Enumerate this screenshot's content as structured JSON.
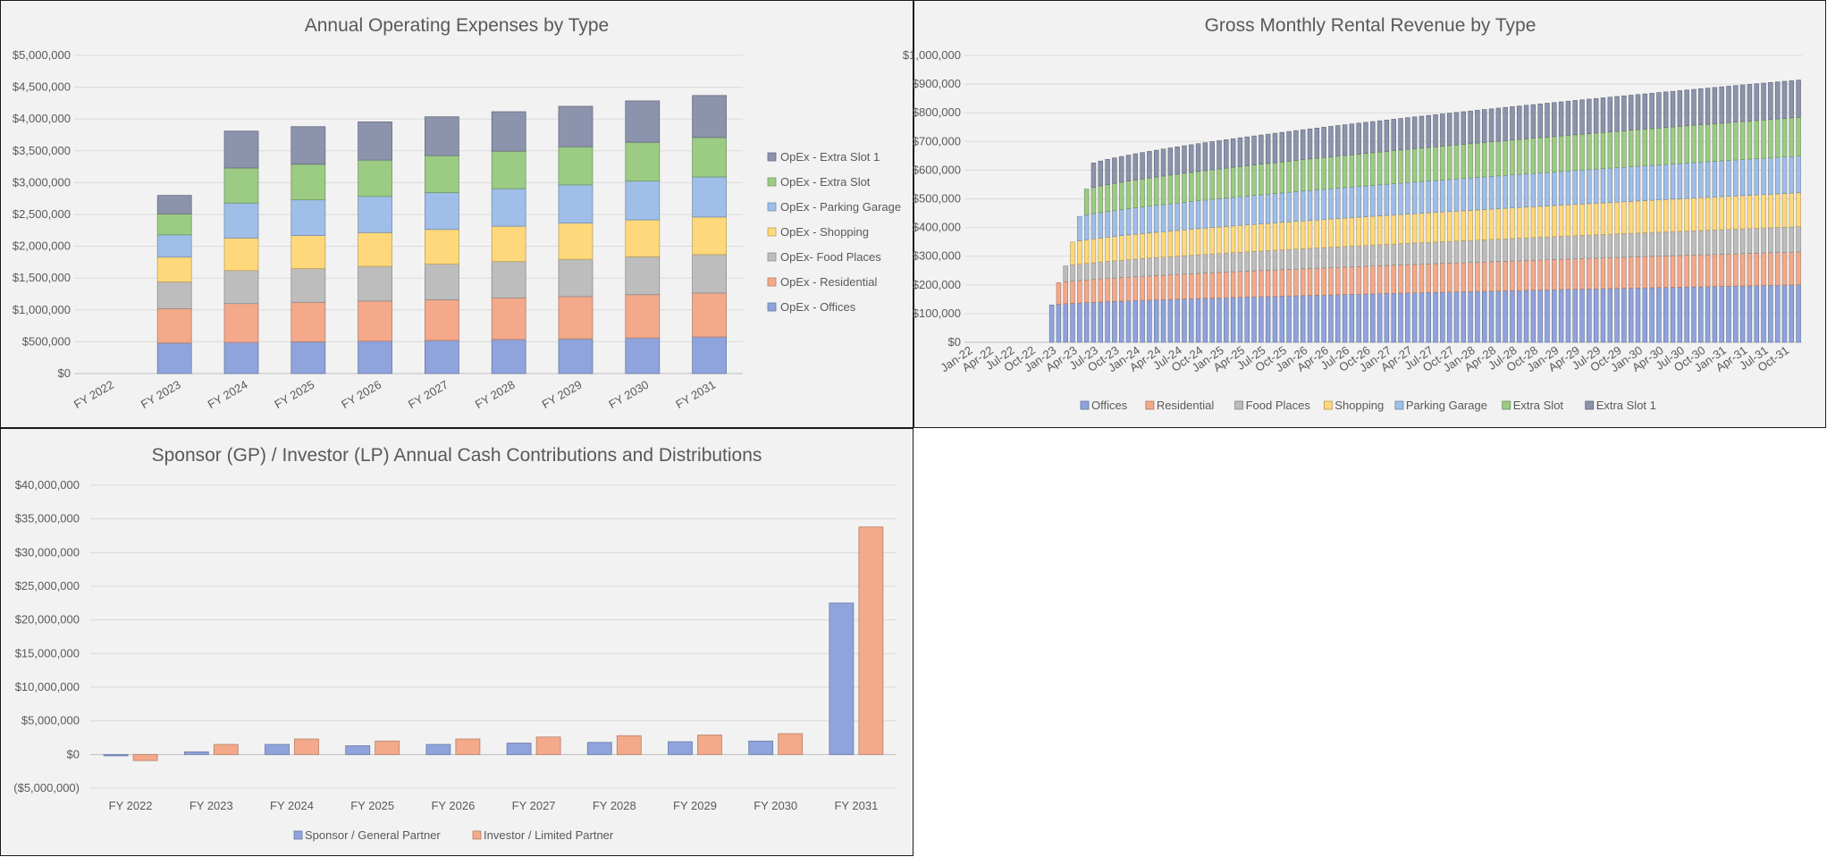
{
  "chart_data": [
    {
      "id": "opex",
      "type": "bar",
      "stacked": true,
      "title": "Annual Operating Expenses by Type",
      "categories": [
        "FY 2022",
        "FY 2023",
        "FY 2024",
        "FY 2025",
        "FY 2026",
        "FY 2027",
        "FY 2028",
        "FY 2029",
        "FY 2030",
        "FY 2031"
      ],
      "ylim": [
        0,
        5000000
      ],
      "yticks": [
        0,
        500000,
        1000000,
        1500000,
        2000000,
        2500000,
        3000000,
        3500000,
        4000000,
        4500000,
        5000000
      ],
      "ytick_labels": [
        "$0",
        "$500,000",
        "$1,000,000",
        "$1,500,000",
        "$2,000,000",
        "$2,500,000",
        "$3,000,000",
        "$3,500,000",
        "$4,000,000",
        "$4,500,000",
        "$5,000,000"
      ],
      "grid": true,
      "legend_position": "right",
      "series": [
        {
          "name": "OpEx - Offices",
          "color": "#8fa3dc",
          "values": [
            0,
            480000,
            490000,
            500000,
            510000,
            520000,
            535000,
            545000,
            560000,
            575000
          ]
        },
        {
          "name": "OpEx - Residential",
          "color": "#f3a98a",
          "values": [
            0,
            540000,
            610000,
            620000,
            630000,
            640000,
            655000,
            665000,
            680000,
            690000
          ]
        },
        {
          "name": "OpEx- Food Places",
          "color": "#bdbdbd",
          "values": [
            0,
            420000,
            520000,
            530000,
            545000,
            560000,
            570000,
            585000,
            595000,
            605000
          ]
        },
        {
          "name": "OpEx - Shopping",
          "color": "#fed87a",
          "values": [
            0,
            390000,
            510000,
            520000,
            530000,
            545000,
            555000,
            570000,
            580000,
            590000
          ]
        },
        {
          "name": "OpEx - Parking Garage",
          "color": "#9fbee8",
          "values": [
            0,
            350000,
            550000,
            560000,
            570000,
            580000,
            590000,
            600000,
            610000,
            630000
          ]
        },
        {
          "name": "OpEx - Extra Slot",
          "color": "#9ccb84",
          "values": [
            0,
            330000,
            550000,
            560000,
            570000,
            580000,
            590000,
            600000,
            610000,
            620000
          ]
        },
        {
          "name": "OpEx - Extra Slot 1",
          "color": "#8c93ad",
          "values": [
            0,
            290000,
            580000,
            590000,
            600000,
            610000,
            620000,
            635000,
            650000,
            660000
          ]
        }
      ]
    },
    {
      "id": "revenue",
      "type": "bar",
      "stacked": true,
      "title": "Gross Monthly Rental Revenue by Type",
      "x_labels": [
        "Jan-22",
        "Apr-22",
        "Jul-22",
        "Oct-22",
        "Jan-23",
        "Apr-23",
        "Jul-23",
        "Oct-23",
        "Jan-24",
        "Apr-24",
        "Jul-24",
        "Oct-24",
        "Jan-25",
        "Apr-25",
        "Jul-25",
        "Oct-25",
        "Jan-26",
        "Apr-26",
        "Jul-26",
        "Oct-26",
        "Jan-27",
        "Apr-27",
        "Jul-27",
        "Oct-27",
        "Jan-28",
        "Apr-28",
        "Jul-28",
        "Oct-28",
        "Jan-29",
        "Apr-29",
        "Jul-29",
        "Oct-29",
        "Jan-30",
        "Apr-30",
        "Jul-30",
        "Oct-30",
        "Jan-31",
        "Apr-31",
        "Jul-31",
        "Oct-31"
      ],
      "x_range": [
        "Jan-22",
        "Dec-31"
      ],
      "ylim": [
        0,
        1000000
      ],
      "yticks": [
        0,
        100000,
        200000,
        300000,
        400000,
        500000,
        600000,
        700000,
        800000,
        900000,
        1000000
      ],
      "ytick_labels": [
        "$0",
        "$100,000",
        "$200,000",
        "$300,000",
        "$400,000",
        "$500,000",
        "$600,000",
        "$700,000",
        "$800,000",
        "$900,000",
        "$1,000,000"
      ],
      "grid": true,
      "legend_position": "bottom",
      "first_revenue_month": "Jan-23",
      "series": [
        {
          "name": "Offices",
          "color": "#8fa3dc",
          "start": "Jan-23",
          "start_value": 130000,
          "end_value": 200000
        },
        {
          "name": "Residential",
          "color": "#f3a98a",
          "start": "Feb-23",
          "start_value": 75000,
          "end_value": 115000
        },
        {
          "name": "Food Places",
          "color": "#bdbdbd",
          "start": "Mar-23",
          "start_value": 55000,
          "end_value": 88000
        },
        {
          "name": "Shopping",
          "color": "#fed87a",
          "start": "Apr-23",
          "start_value": 80000,
          "end_value": 118000
        },
        {
          "name": "Parking Garage",
          "color": "#9fbee8",
          "start": "May-23",
          "start_value": 85000,
          "end_value": 128000
        },
        {
          "name": "Extra Slot",
          "color": "#9ccb84",
          "start": "Jun-23",
          "start_value": 90000,
          "end_value": 135000
        },
        {
          "name": "Extra Slot 1",
          "color": "#8c93ad",
          "start": "Jul-23",
          "start_value": 85000,
          "end_value": 130000
        }
      ]
    },
    {
      "id": "cashflows",
      "type": "bar",
      "stacked": false,
      "title": "Sponsor (GP) / Investor (LP) Annual Cash Contributions and Distributions",
      "categories": [
        "FY 2022",
        "FY 2023",
        "FY 2024",
        "FY 2025",
        "FY 2026",
        "FY 2027",
        "FY 2028",
        "FY 2029",
        "FY 2030",
        "FY 2031"
      ],
      "ylim": [
        -5000000,
        40000000
      ],
      "yticks": [
        -5000000,
        0,
        5000000,
        10000000,
        15000000,
        20000000,
        25000000,
        30000000,
        35000000,
        40000000
      ],
      "ytick_labels": [
        "($5,000,000)",
        "$0",
        "$5,000,000",
        "$10,000,000",
        "$15,000,000",
        "$20,000,000",
        "$25,000,000",
        "$30,000,000",
        "$35,000,000",
        "$40,000,000"
      ],
      "grid": true,
      "legend_position": "bottom",
      "series": [
        {
          "name": "Sponsor / General Partner",
          "color": "#8fa3dc",
          "values": [
            -200000,
            400000,
            1500000,
            1300000,
            1500000,
            1700000,
            1800000,
            1900000,
            2000000,
            22500000
          ]
        },
        {
          "name": "Investor / Limited Partner",
          "color": "#f3a98a",
          "values": [
            -900000,
            1500000,
            2300000,
            2000000,
            2300000,
            2600000,
            2800000,
            2900000,
            3100000,
            33800000
          ]
        }
      ]
    }
  ]
}
